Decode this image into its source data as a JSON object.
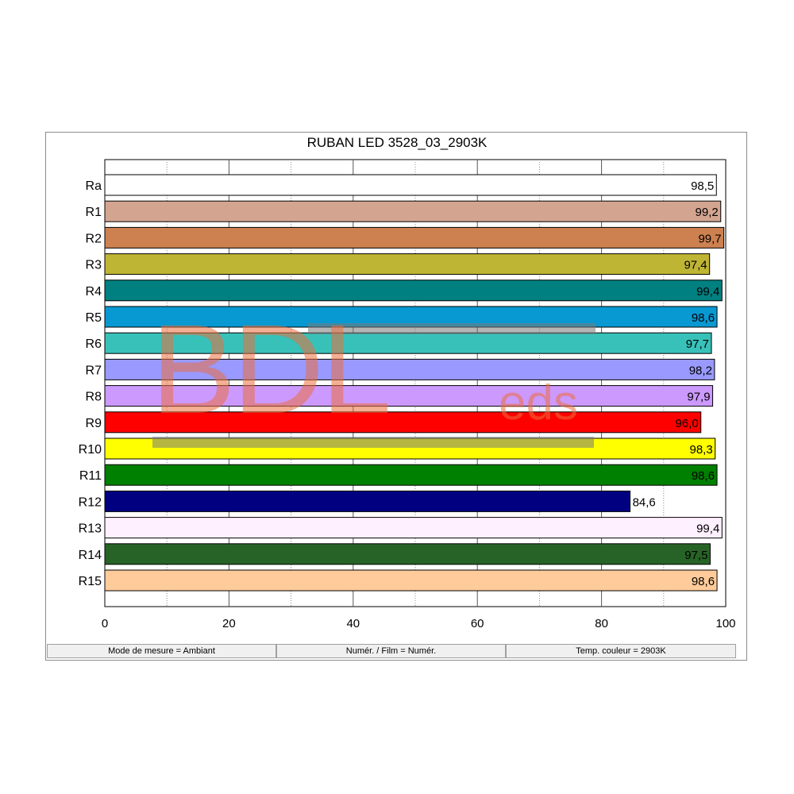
{
  "chart_data": {
    "type": "bar",
    "orientation": "horizontal",
    "title": "RUBAN LED 3528_03_2903K",
    "categories": [
      "Ra",
      "R1",
      "R2",
      "R3",
      "R4",
      "R5",
      "R6",
      "R7",
      "R8",
      "R9",
      "R10",
      "R11",
      "R12",
      "R13",
      "R14",
      "R15"
    ],
    "values": [
      98.5,
      99.2,
      99.7,
      97.4,
      99.4,
      98.6,
      97.7,
      98.2,
      97.9,
      96.0,
      98.3,
      98.6,
      84.6,
      99.4,
      97.5,
      98.6
    ],
    "value_labels": [
      "98,5",
      "99,2",
      "99,7",
      "97,4",
      "99,4",
      "98,6",
      "97,7",
      "98,2",
      "97,9",
      "96,0",
      "98,3",
      "98,6",
      "84,6",
      "99,4",
      "97,5",
      "98,6"
    ],
    "colors": [
      "#ffffff",
      "#d3a590",
      "#cd8150",
      "#bfb535",
      "#008080",
      "#0899d2",
      "#38c1b9",
      "#9999ff",
      "#cc99ff",
      "#ff0000",
      "#ffff00",
      "#008000",
      "#000080",
      "#fff0ff",
      "#276326",
      "#ffcb9a"
    ],
    "xlim": [
      0,
      100
    ],
    "x_ticks": [
      0,
      20,
      40,
      60,
      80,
      100
    ],
    "grid": true
  },
  "watermark": {
    "big": "BDL",
    "small": "eds"
  },
  "status": [
    "Mode de mesure = Ambiant",
    "Numér. / Film = Numér.",
    "Temp. couleur = 2903K"
  ]
}
